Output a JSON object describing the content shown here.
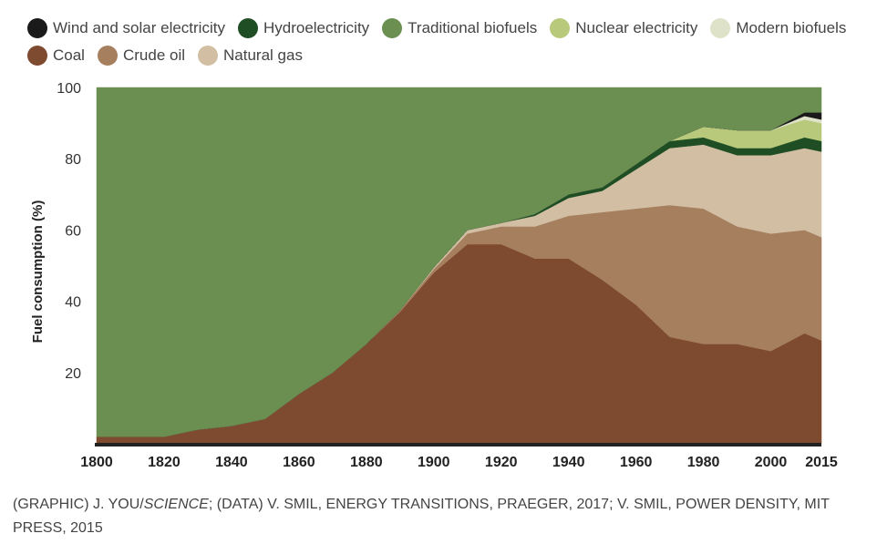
{
  "credit": {
    "prefix": "(GRAPHIC) J. YOU/",
    "italic": "SCIENCE",
    "suffix": "; (DATA) V. SMIL, ENERGY TRANSITIONS, PRAEGER, 2017; V. SMIL, POWER DENSITY, MIT PRESS, 2015"
  },
  "chart_data": {
    "type": "area",
    "stacked": true,
    "title": "",
    "xlabel": "",
    "ylabel": "Fuel consumption (%)",
    "xlim": [
      1800,
      2015
    ],
    "ylim": [
      0,
      100
    ],
    "x_ticks": [
      "1800",
      "1820",
      "1840",
      "1860",
      "1880",
      "1900",
      "1920",
      "1940",
      "1960",
      "1980",
      "2000",
      "2015"
    ],
    "y_ticks": [
      "20",
      "40",
      "60",
      "80",
      "100"
    ],
    "grid": false,
    "legend_position": "top",
    "x": [
      1800,
      1810,
      1820,
      1830,
      1840,
      1850,
      1860,
      1870,
      1880,
      1890,
      1900,
      1910,
      1920,
      1930,
      1940,
      1950,
      1960,
      1970,
      1980,
      1990,
      2000,
      2010,
      2015
    ],
    "series": [
      {
        "name": "Coal",
        "color": "#7e4a30",
        "values": [
          2,
          2,
          2,
          4,
          5,
          7,
          14,
          20,
          28,
          37,
          48,
          56,
          56,
          52,
          52,
          46,
          39,
          30,
          28,
          28,
          26,
          31,
          29
        ]
      },
      {
        "name": "Crude oil",
        "color": "#a67f5f",
        "values": [
          0,
          0,
          0,
          0,
          0,
          0,
          0,
          0,
          0,
          0.5,
          1,
          3,
          5,
          9,
          12,
          19,
          27,
          37,
          38,
          33,
          33,
          29,
          29
        ]
      },
      {
        "name": "Natural gas",
        "color": "#d2bea3",
        "values": [
          0,
          0,
          0,
          0,
          0,
          0,
          0,
          0,
          0,
          0,
          0.5,
          1,
          1,
          3,
          5,
          6,
          11,
          16,
          18,
          20,
          22,
          23,
          24
        ]
      },
      {
        "name": "Hydroelectricity",
        "color": "#1f4d24",
        "values": [
          0,
          0,
          0,
          0,
          0,
          0,
          0,
          0,
          0,
          0,
          0,
          0,
          0,
          0.5,
          1,
          1,
          1.5,
          2,
          2,
          2,
          2,
          3,
          3
        ]
      },
      {
        "name": "Nuclear electricity",
        "color": "#b8c97c",
        "values": [
          0,
          0,
          0,
          0,
          0,
          0,
          0,
          0,
          0,
          0,
          0,
          0,
          0,
          0,
          0,
          0,
          0,
          0,
          3,
          5,
          5,
          5,
          5
        ]
      },
      {
        "name": "Modern biofuels",
        "color": "#dde2c9",
        "values": [
          0,
          0,
          0,
          0,
          0,
          0,
          0,
          0,
          0,
          0,
          0,
          0,
          0,
          0,
          0,
          0,
          0,
          0,
          0,
          0,
          0,
          1,
          1
        ]
      },
      {
        "name": "Wind and solar electricity",
        "color": "#1a1a1a",
        "values": [
          0,
          0,
          0,
          0,
          0,
          0,
          0,
          0,
          0,
          0,
          0,
          0,
          0,
          0,
          0,
          0,
          0,
          0,
          0,
          0,
          0,
          1,
          2
        ]
      },
      {
        "name": "Traditional biofuels",
        "color": "#6a8f51",
        "values": [
          98,
          98,
          98,
          96,
          95,
          93,
          86,
          80,
          72,
          62.5,
          50.5,
          40,
          38,
          35.5,
          30,
          28,
          21.5,
          15,
          11,
          12,
          12,
          7,
          7
        ]
      }
    ]
  },
  "legend": [
    [
      {
        "label": "Wind and solar electricity",
        "color": "#1a1a1a"
      },
      {
        "label": "Hydroelectricity",
        "color": "#1f4d24"
      },
      {
        "label": "Traditional biofuels",
        "color": "#6a8f51"
      },
      {
        "label": "Nuclear electricity",
        "color": "#b8c97c"
      },
      {
        "label": "Modern biofuels",
        "color": "#dde2c9"
      }
    ],
    [
      {
        "label": "Coal",
        "color": "#7e4a30"
      },
      {
        "label": "Crude oil",
        "color": "#a67f5f"
      },
      {
        "label": "Natural gas",
        "color": "#d2bea3"
      }
    ]
  ]
}
